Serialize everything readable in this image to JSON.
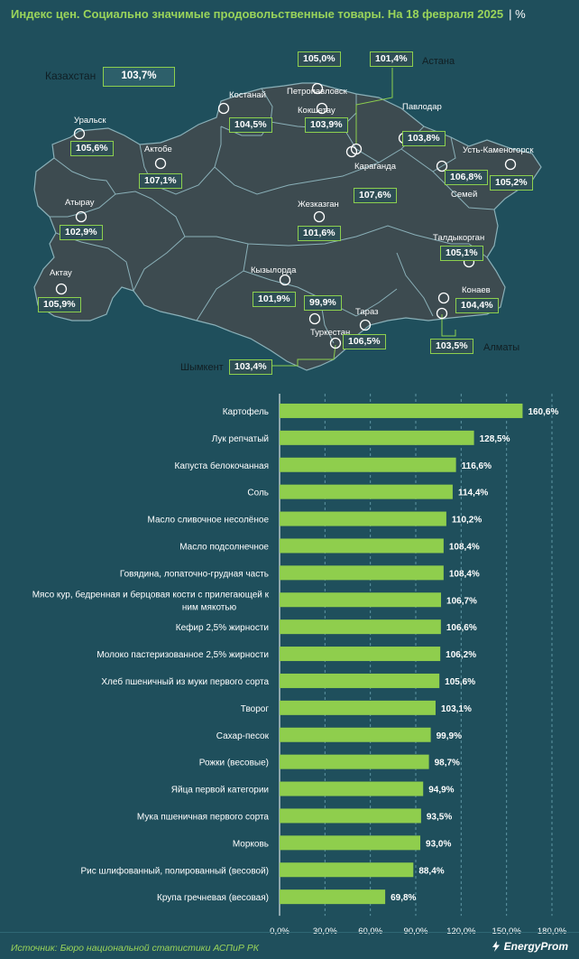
{
  "title": {
    "text": "Индекс цен. Социально значимые продовольственные товары. На 18 февраля 2025",
    "unit": "%"
  },
  "map": {
    "country": {
      "name": "Казахстан",
      "value": "103,7%"
    },
    "regions": [
      {
        "id": "uralsk",
        "name": "Уральск",
        "value": "105,6%"
      },
      {
        "id": "aktobe",
        "name": "Актобе",
        "value": "107,1%"
      },
      {
        "id": "atyrau",
        "name": "Атырау",
        "value": "102,9%"
      },
      {
        "id": "aktau",
        "name": "Актау",
        "value": "105,9%"
      },
      {
        "id": "kostanay",
        "name": "Костанай",
        "value": "104,5%"
      },
      {
        "id": "petropavlovsk",
        "name": "Петропавловск",
        "value": "105,0%"
      },
      {
        "id": "kokshetau",
        "name": "Кокшетау",
        "value": "103,9%"
      },
      {
        "id": "astana",
        "name": "Астана",
        "value": "101,4%"
      },
      {
        "id": "pavlodar",
        "name": "Павлодар",
        "value": "103,8%"
      },
      {
        "id": "ust-kamenogorsk",
        "name": "Усть-Каменогорск",
        "value": "105,2%"
      },
      {
        "id": "semey",
        "name": "Семей",
        "value": "106,8%"
      },
      {
        "id": "karaganda",
        "name": "Караганда",
        "value": "107,6%"
      },
      {
        "id": "zhezkazgan",
        "name": "Жезказган",
        "value": "101,6%"
      },
      {
        "id": "taldykorgan",
        "name": "Талдыкорган",
        "value": "105,1%"
      },
      {
        "id": "konaev",
        "name": "Конаев",
        "value": "104,4%"
      },
      {
        "id": "almaty",
        "name": "Алматы",
        "value": "103,5%"
      },
      {
        "id": "kyzylorda",
        "name": "Кызылорда",
        "value": "101,9%"
      },
      {
        "id": "turkestan",
        "name": "Туркестан",
        "value": "99,9%"
      },
      {
        "id": "taraz",
        "name": "Тараз",
        "value": "106,5%"
      },
      {
        "id": "shymkent",
        "name": "Шымкент",
        "value": "103,4%"
      }
    ]
  },
  "chart_data": {
    "type": "bar",
    "orientation": "horizontal",
    "categories": [
      "Картофель",
      "Лук репчатый",
      "Капуста белокочанная",
      "Соль",
      "Масло сливочное несолёное",
      "Масло подсолнечное",
      "Говядина, лопаточно-грудная часть",
      "Мясо кур, бедренная и берцовая кости с прилегающей к ним мякотью",
      "Кефир 2,5% жирности",
      "Молоко пастеризованное 2,5% жирности",
      "Хлеб пшеничный из муки первого сорта",
      "Творог",
      "Сахар-песок",
      "Рожки (весовые)",
      "Яйца первой категории",
      "Мука пшеничная первого сорта",
      "Морковь",
      "Рис шлифованный, полированный (весовой)",
      "Крупа гречневая (весовая)"
    ],
    "values": [
      160.6,
      128.5,
      116.6,
      114.4,
      110.2,
      108.4,
      108.4,
      106.7,
      106.6,
      106.2,
      105.6,
      103.1,
      99.9,
      98.7,
      94.9,
      93.5,
      93.0,
      88.4,
      69.8
    ],
    "value_labels": [
      "160,6%",
      "128,5%",
      "116,6%",
      "114,4%",
      "110,2%",
      "108,4%",
      "108,4%",
      "106,7%",
      "106,6%",
      "106,2%",
      "105,6%",
      "103,1%",
      "99,9%",
      "98,7%",
      "94,9%",
      "93,5%",
      "93,0%",
      "88,4%",
      "69,8%"
    ],
    "xlim": [
      0,
      180
    ],
    "ticks": [
      0,
      30,
      60,
      90,
      120,
      150,
      180
    ],
    "tick_labels": [
      "0,0%",
      "30,0%",
      "60,0%",
      "90,0%",
      "120,0%",
      "150,0%",
      "180,0%"
    ],
    "grid": true,
    "grid_style": "dashed vertical",
    "bar_color": "#8fce4d"
  },
  "footer": {
    "source": "Источник: Бюро национальной статистики АСПиР РК",
    "brand": "EnergyProm"
  },
  "colors": {
    "background": "#1f4f5c",
    "accent": "#9ad45a",
    "map_fill": "#3d4b50",
    "map_border": "#8ab0b8",
    "label_border": "#8dd04e"
  }
}
